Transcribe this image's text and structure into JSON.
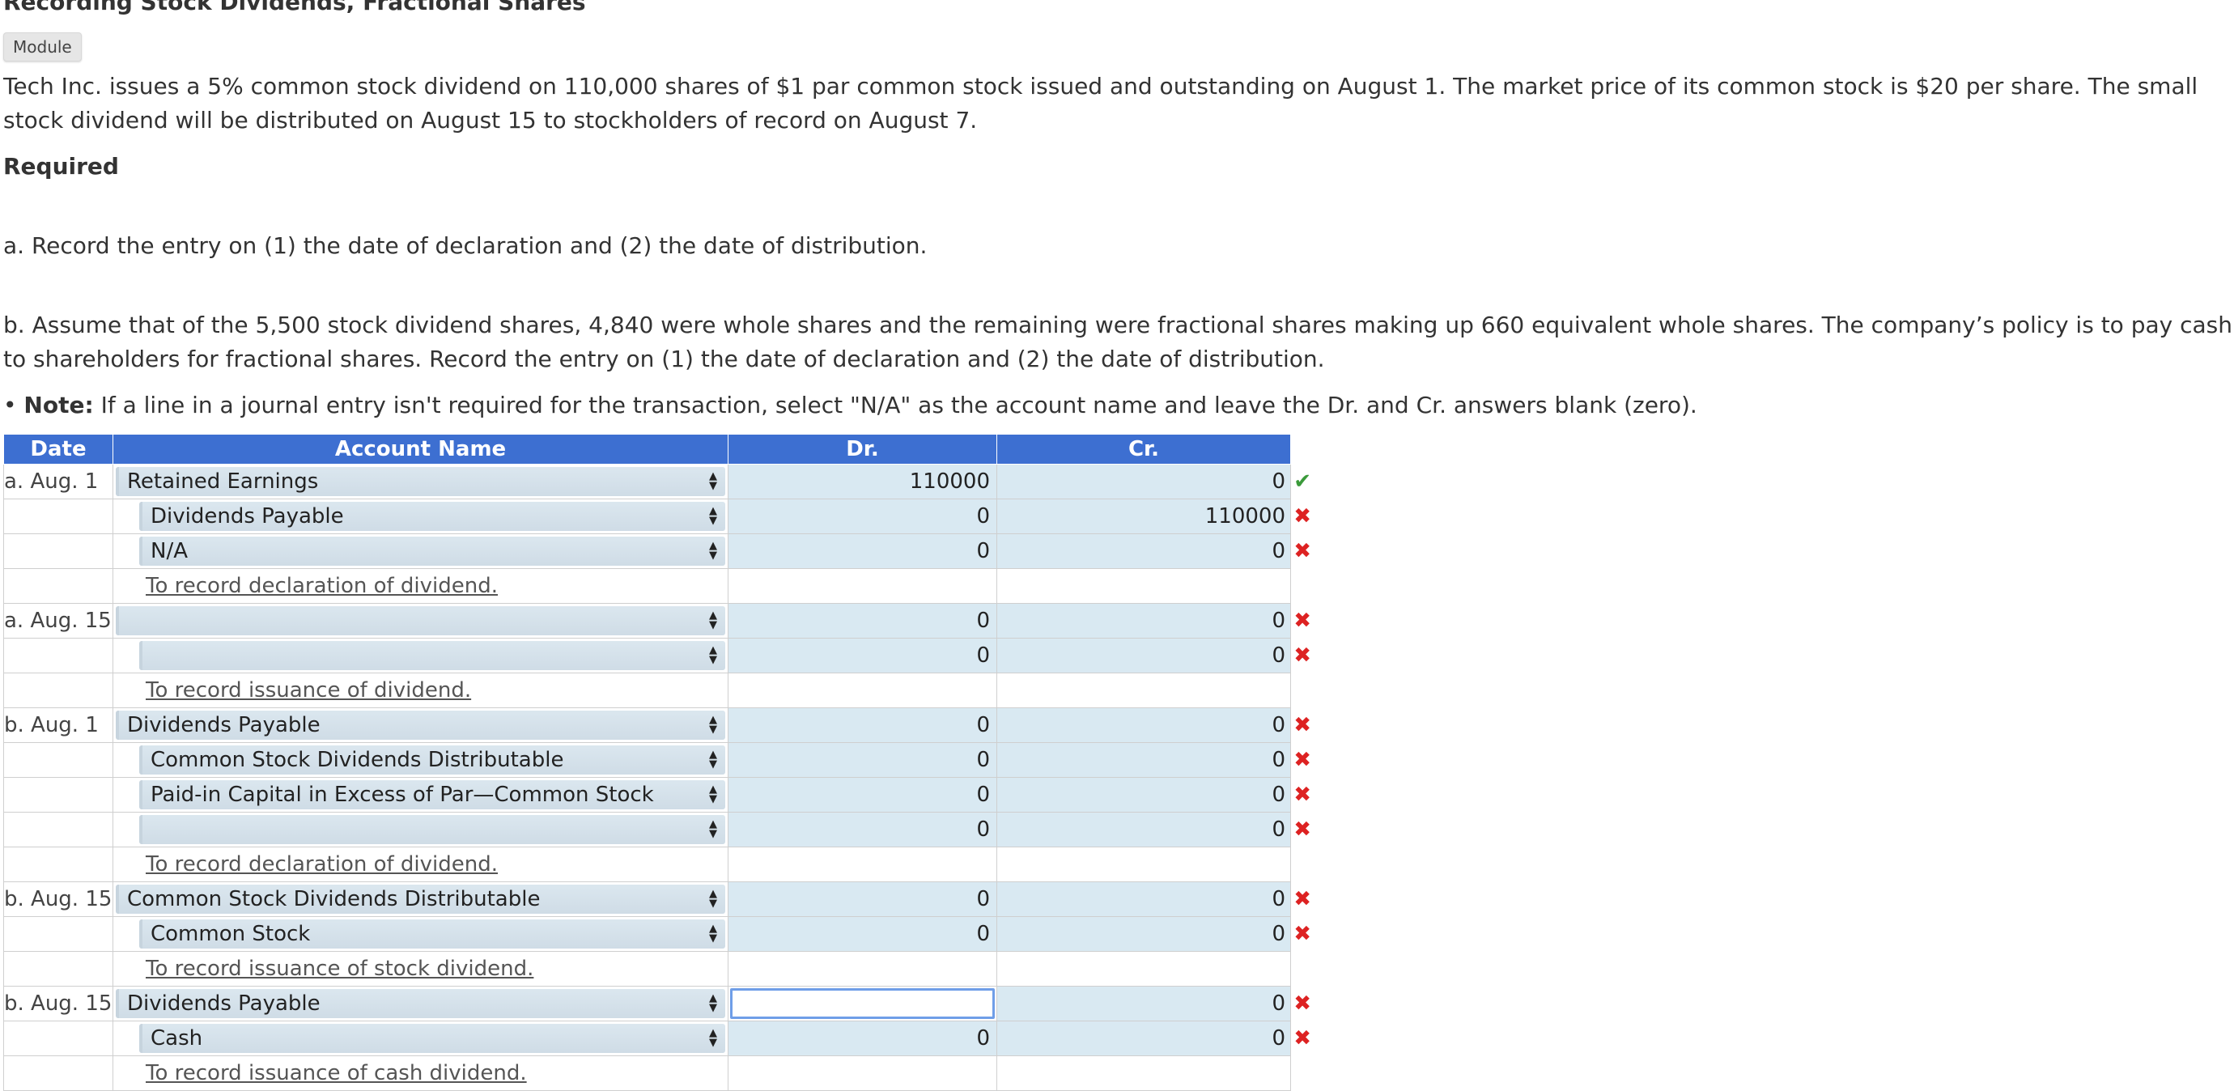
{
  "title": "Recording Stock Dividends, Fractional Shares",
  "module_label": "Module",
  "intro": "Tech Inc. issues a 5% common stock dividend on 110,000 shares of $1 par common stock issued and outstanding on August 1. The market price of its common stock is $20 per share. The small stock dividend will be distributed on August 15 to stockholders of record on August 7.",
  "required_label": "Required",
  "part_a": "a. Record the entry on (1) the date of declaration and (2) the date of distribution.",
  "part_b": "b. Assume that of the 5,500 stock dividend shares, 4,840 were whole shares and the remaining were fractional shares making up 660 equivalent whole shares. The company’s policy is to pay cash to shareholders for fractional shares. Record the entry on (1) the date of declaration and (2) the date of distribution.",
  "note_bullet": "• ",
  "note_label": "Note:",
  "note_text": " If a line in a journal entry isn't required for the transaction, select \"N/A\" as the account name and leave the Dr. and Cr. answers blank (zero).",
  "headers": {
    "date": "Date",
    "account": "Account Name",
    "dr": "Dr.",
    "cr": "Cr."
  },
  "rows": [
    {
      "date": "a. Aug. 1",
      "account": "Retained Earnings",
      "dr": "110000",
      "cr": "0",
      "mark": "check"
    },
    {
      "date": "",
      "account": "Dividends Payable",
      "dr": "0",
      "cr": "110000",
      "mark": "cross"
    },
    {
      "date": "",
      "account": "N/A",
      "dr": "0",
      "cr": "0",
      "mark": "cross"
    },
    {
      "memo": "To record declaration of dividend."
    },
    {
      "date": "a. Aug. 15",
      "account": "",
      "dr": "0",
      "cr": "0",
      "mark": "cross"
    },
    {
      "date": "",
      "account": "",
      "dr": "0",
      "cr": "0",
      "mark": "cross"
    },
    {
      "memo": "To record issuance of dividend."
    },
    {
      "date": "b. Aug. 1",
      "account": "Dividends Payable",
      "dr": "0",
      "cr": "0",
      "mark": "cross"
    },
    {
      "date": "",
      "account": "Common Stock Dividends Distributable",
      "dr": "0",
      "cr": "0",
      "mark": "cross"
    },
    {
      "date": "",
      "account": "Paid-in Capital in Excess of Par—Common Stock",
      "dr": "0",
      "cr": "0",
      "mark": "cross"
    },
    {
      "date": "",
      "account": "",
      "dr": "0",
      "cr": "0",
      "mark": "cross"
    },
    {
      "memo": "To record declaration of dividend."
    },
    {
      "date": "b. Aug. 15",
      "account": "Common Stock Dividends Distributable",
      "dr": "0",
      "cr": "0",
      "mark": "cross"
    },
    {
      "date": "",
      "account": "Common Stock",
      "dr": "0",
      "cr": "0",
      "mark": "cross"
    },
    {
      "memo": "To record issuance of stock dividend."
    },
    {
      "date": "b. Aug. 15",
      "account": "Dividends Payable",
      "dr": "",
      "cr": "0",
      "mark": "cross",
      "dr_focused": true
    },
    {
      "date": "",
      "account": "Cash",
      "dr": "0",
      "cr": "0",
      "mark": "cross"
    },
    {
      "memo": "To record issuance of cash dividend."
    }
  ],
  "marks": {
    "check": "✔",
    "cross": "✖"
  },
  "colors": {
    "header_bg": "#3d6fd1",
    "input_bg": "#d9e9f2",
    "check": "#3a9a3a",
    "cross": "#d22222"
  }
}
